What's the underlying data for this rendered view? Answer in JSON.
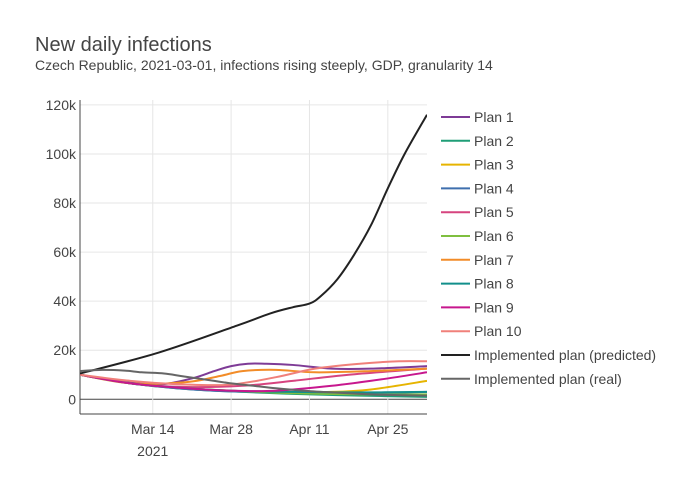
{
  "chart_data": {
    "type": "line",
    "title": "New daily infections",
    "subtitle": "Czech Republic, 2021-03-01, infections rising steeply, GDP, granularity 14",
    "xlabel": "",
    "ylabel": "",
    "x_range": [
      "2021-03-01",
      "2021-05-02"
    ],
    "ylim": [
      -6000,
      122000
    ],
    "y_ticks": [
      0,
      20000,
      40000,
      60000,
      80000,
      100000,
      120000
    ],
    "y_tick_labels": [
      "0",
      "20k",
      "40k",
      "60k",
      "80k",
      "100k",
      "120k"
    ],
    "x_ticks": [
      "2021-03-14",
      "2021-03-28",
      "2021-04-11",
      "2021-04-25"
    ],
    "x_tick_labels": [
      "Mar 14",
      "Mar 28",
      "Apr 11",
      "Apr 25"
    ],
    "x_tick_year": "2021",
    "grid": true,
    "legend_position": "right",
    "series": [
      {
        "name": "Plan 1",
        "color": "#7e3b96",
        "x": [
          "2021-03-01",
          "2021-03-08",
          "2021-03-15",
          "2021-03-21",
          "2021-03-25",
          "2021-03-28",
          "2021-03-31",
          "2021-04-03",
          "2021-04-08",
          "2021-04-15",
          "2021-04-22",
          "2021-05-02"
        ],
        "y": [
          10000,
          7500,
          6000,
          8500,
          11500,
          13500,
          14500,
          14500,
          14000,
          12500,
          12500,
          13500
        ]
      },
      {
        "name": "Plan 2",
        "color": "#1f9e77",
        "x": [
          "2021-03-01",
          "2021-03-10",
          "2021-03-20",
          "2021-03-28",
          "2021-04-08",
          "2021-04-20",
          "2021-05-02"
        ],
        "y": [
          10000,
          6500,
          4200,
          3200,
          2200,
          1500,
          1000
        ]
      },
      {
        "name": "Plan 3",
        "color": "#e6b400",
        "x": [
          "2021-03-01",
          "2021-03-10",
          "2021-03-20",
          "2021-03-28",
          "2021-04-05",
          "2021-04-15",
          "2021-04-22",
          "2021-05-02"
        ],
        "y": [
          10000,
          6500,
          4500,
          3500,
          3000,
          3000,
          4000,
          7500
        ]
      },
      {
        "name": "Plan 4",
        "color": "#3f6fae",
        "x": [
          "2021-03-01",
          "2021-03-10",
          "2021-03-20",
          "2021-03-28",
          "2021-04-08",
          "2021-04-20",
          "2021-05-02"
        ],
        "y": [
          10000,
          6500,
          4200,
          3200,
          2700,
          2500,
          3000
        ]
      },
      {
        "name": "Plan 5",
        "color": "#d6447f",
        "x": [
          "2021-03-01",
          "2021-03-10",
          "2021-03-20",
          "2021-03-30",
          "2021-04-08",
          "2021-04-18",
          "2021-05-02"
        ],
        "y": [
          10000,
          6500,
          5000,
          5500,
          7500,
          10000,
          12500
        ]
      },
      {
        "name": "Plan 6",
        "color": "#7fbf3f",
        "x": [
          "2021-03-01",
          "2021-03-10",
          "2021-03-20",
          "2021-03-28",
          "2021-04-08",
          "2021-04-20",
          "2021-05-02"
        ],
        "y": [
          10000,
          6500,
          4500,
          3500,
          2500,
          2000,
          2000
        ]
      },
      {
        "name": "Plan 7",
        "color": "#f28c28",
        "x": [
          "2021-03-01",
          "2021-03-10",
          "2021-03-20",
          "2021-03-26",
          "2021-03-30",
          "2021-04-05",
          "2021-04-12",
          "2021-04-22",
          "2021-05-02"
        ],
        "y": [
          10000,
          6500,
          7000,
          9500,
          11500,
          12000,
          11000,
          11500,
          12500
        ]
      },
      {
        "name": "Plan 8",
        "color": "#128f8b",
        "x": [
          "2021-03-01",
          "2021-03-10",
          "2021-03-20",
          "2021-03-28",
          "2021-04-08",
          "2021-04-20",
          "2021-05-02"
        ],
        "y": [
          10000,
          6500,
          4500,
          3500,
          3000,
          2800,
          3000
        ]
      },
      {
        "name": "Plan 9",
        "color": "#c7178e",
        "x": [
          "2021-03-01",
          "2021-03-10",
          "2021-03-20",
          "2021-03-28",
          "2021-04-05",
          "2021-04-15",
          "2021-04-25",
          "2021-05-02"
        ],
        "y": [
          10000,
          6500,
          4500,
          3500,
          3500,
          5500,
          8500,
          11000
        ]
      },
      {
        "name": "Plan 10",
        "color": "#f0807a",
        "x": [
          "2021-03-01",
          "2021-03-10",
          "2021-03-20",
          "2021-03-28",
          "2021-04-05",
          "2021-04-12",
          "2021-04-20",
          "2021-04-27",
          "2021-05-02"
        ],
        "y": [
          10000,
          7500,
          6000,
          6000,
          9000,
          12500,
          14500,
          15500,
          15500
        ]
      },
      {
        "name": "Implemented plan (predicted)",
        "color": "#222222",
        "x": [
          "2021-03-01",
          "2021-03-15",
          "2021-03-29",
          "2021-04-04",
          "2021-04-08",
          "2021-04-11",
          "2021-04-13",
          "2021-04-16",
          "2021-04-19",
          "2021-04-22",
          "2021-04-25",
          "2021-04-28",
          "2021-05-02"
        ],
        "y": [
          10500,
          19000,
          30000,
          35000,
          37500,
          39000,
          42000,
          49000,
          59000,
          71000,
          86000,
          100000,
          116000
        ]
      },
      {
        "name": "Implemented plan (real)",
        "color": "#666666",
        "x": [
          "2021-03-01",
          "2021-03-05",
          "2021-03-09",
          "2021-03-12",
          "2021-03-16",
          "2021-03-19",
          "2021-03-22",
          "2021-03-25",
          "2021-03-28",
          "2021-04-01",
          "2021-04-05",
          "2021-04-10",
          "2021-04-15",
          "2021-04-20",
          "2021-04-25",
          "2021-05-02"
        ],
        "y": [
          11500,
          12000,
          11700,
          11000,
          10500,
          9500,
          8500,
          7500,
          6500,
          5500,
          4500,
          3500,
          2800,
          2200,
          1800,
          1500
        ]
      }
    ]
  }
}
